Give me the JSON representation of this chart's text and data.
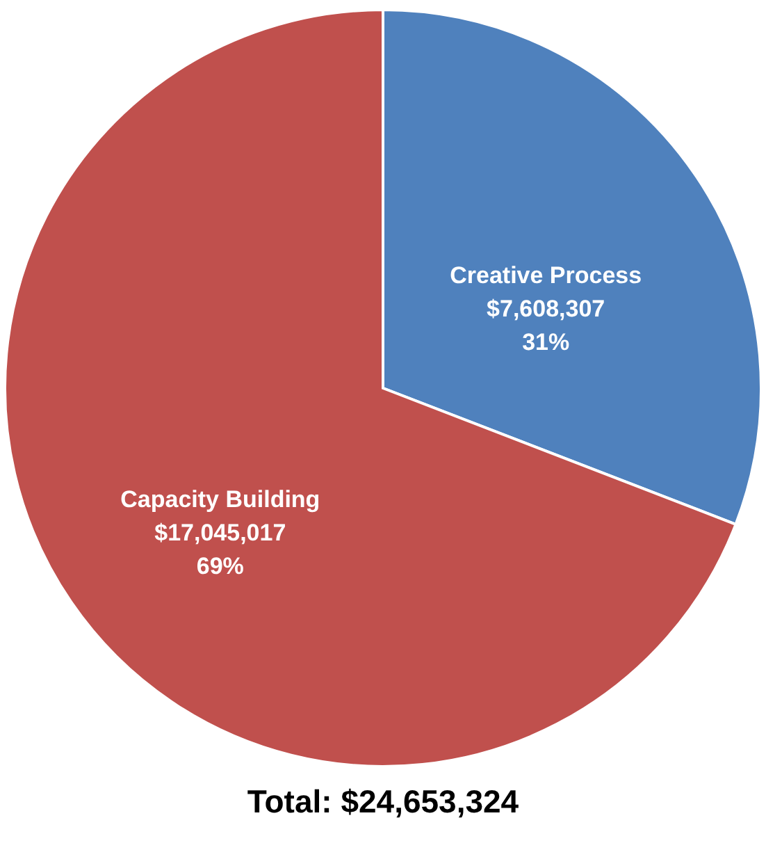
{
  "chart_data": {
    "type": "pie",
    "categories": [
      "Creative Process",
      "Capacity Building"
    ],
    "values": [
      7608307,
      17045017
    ],
    "colors": [
      "#4f81bd",
      "#c0504d"
    ],
    "value_labels": [
      "$7,608,307\n31%",
      "$17,045,017\n69%"
    ],
    "annotations": [
      "Total: $24,653,324"
    ]
  }
}
